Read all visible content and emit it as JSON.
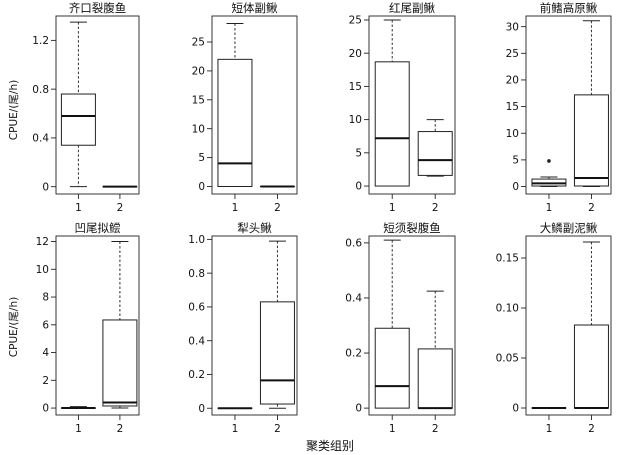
{
  "figure": {
    "ylabel": "CPUE/(尾/h)",
    "xlabel": "聚类组别"
  },
  "chart_data": [
    {
      "type": "box",
      "title": "齐口裂腹鱼",
      "categories": [
        "1",
        "2"
      ],
      "ylim": [
        -0.06,
        1.4
      ],
      "yticks": [
        "0",
        "0.4",
        "0.8",
        "1.2"
      ],
      "series": [
        {
          "min": 0,
          "q1": 0.34,
          "median": 0.58,
          "q3": 0.76,
          "max": 1.35,
          "outliers": []
        },
        {
          "min": 0,
          "q1": 0,
          "median": 0,
          "q3": 0,
          "max": 0,
          "outliers": []
        }
      ]
    },
    {
      "type": "box",
      "title": "短体副鳅",
      "categories": [
        "1",
        "2"
      ],
      "ylim": [
        -1.3,
        29.5
      ],
      "yticks": [
        "0",
        "5",
        "10",
        "15",
        "20",
        "25"
      ],
      "series": [
        {
          "min": 0,
          "q1": 0,
          "median": 4,
          "q3": 22,
          "max": 28.2,
          "outliers": []
        },
        {
          "min": 0,
          "q1": 0,
          "median": 0,
          "q3": 0,
          "max": 0,
          "outliers": []
        }
      ]
    },
    {
      "type": "box",
      "title": "红尾副鳅",
      "categories": [
        "1",
        "2"
      ],
      "ylim": [
        -1.2,
        25.6
      ],
      "yticks": [
        "0",
        "5",
        "10",
        "15",
        "20",
        "25"
      ],
      "series": [
        {
          "min": 0,
          "q1": 0,
          "median": 7.2,
          "q3": 18.7,
          "max": 25,
          "outliers": []
        },
        {
          "min": 1.5,
          "q1": 1.6,
          "median": 3.9,
          "q3": 8.2,
          "max": 10,
          "outliers": []
        }
      ]
    },
    {
      "type": "box",
      "title": "前鳍高原鳅",
      "categories": [
        "1",
        "2"
      ],
      "ylim": [
        -1.4,
        32
      ],
      "yticks": [
        "0",
        "5",
        "10",
        "15",
        "20",
        "25",
        "30"
      ],
      "series": [
        {
          "min": 0,
          "q1": 0.1,
          "median": 0.6,
          "q3": 1.4,
          "max": 1.8,
          "outliers": [
            4.8
          ]
        },
        {
          "min": 0,
          "q1": 0.1,
          "median": 1.6,
          "q3": 17.2,
          "max": 31.1,
          "outliers": []
        }
      ]
    },
    {
      "type": "box",
      "title": "凹尾拟鲿",
      "categories": [
        "1",
        "2"
      ],
      "ylim": [
        -0.5,
        12.4
      ],
      "yticks": [
        "0",
        "2",
        "4",
        "6",
        "8",
        "10",
        "12"
      ],
      "series": [
        {
          "min": 0,
          "q1": 0,
          "median": 0,
          "q3": 0,
          "max": 0.1,
          "outliers": []
        },
        {
          "min": 0,
          "q1": 0.15,
          "median": 0.4,
          "q3": 6.35,
          "max": 12,
          "outliers": []
        }
      ]
    },
    {
      "type": "box",
      "title": "犁头鳅",
      "categories": [
        "1",
        "2"
      ],
      "ylim": [
        -0.04,
        1.02
      ],
      "yticks": [
        "0",
        "0.2",
        "0.4",
        "0.6",
        "0.8",
        "1.0"
      ],
      "series": [
        {
          "min": 0,
          "q1": 0,
          "median": 0,
          "q3": 0,
          "max": 0,
          "outliers": []
        },
        {
          "min": 0,
          "q1": 0.025,
          "median": 0.165,
          "q3": 0.63,
          "max": 0.99,
          "outliers": []
        }
      ]
    },
    {
      "type": "box",
      "title": "短须裂腹鱼",
      "categories": [
        "1",
        "2"
      ],
      "ylim": [
        -0.025,
        0.625
      ],
      "yticks": [
        "0",
        "0.2",
        "0.4",
        "0.6"
      ],
      "series": [
        {
          "min": 0,
          "q1": 0,
          "median": 0.08,
          "q3": 0.29,
          "max": 0.61,
          "outliers": []
        },
        {
          "min": 0,
          "q1": 0,
          "median": 0,
          "q3": 0.215,
          "max": 0.425,
          "outliers": []
        }
      ]
    },
    {
      "type": "box",
      "title": "大鳞副泥鳅",
      "categories": [
        "1",
        "2"
      ],
      "ylim": [
        -0.007,
        0.172
      ],
      "yticks": [
        "0",
        "0.05",
        "0.10",
        "0.15"
      ],
      "series": [
        {
          "min": 0,
          "q1": 0,
          "median": 0,
          "q3": 0,
          "max": 0,
          "outliers": []
        },
        {
          "min": 0,
          "q1": 0,
          "median": 0,
          "q3": 0.083,
          "max": 0.166,
          "outliers": []
        }
      ]
    }
  ]
}
